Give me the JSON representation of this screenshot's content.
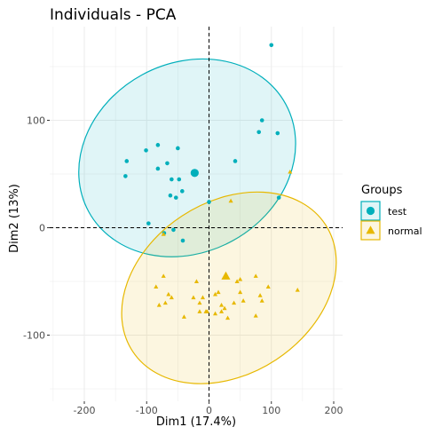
{
  "chart_data": {
    "type": "scatter",
    "title": "Individuals - PCA",
    "xlabel": "Dim1 (17.4%)",
    "ylabel": "Dim2 (13%)",
    "xlim": [
      -240,
      205
    ],
    "ylim": [
      -155,
      175
    ],
    "xticks": [
      -200,
      -100,
      0,
      100,
      200
    ],
    "yticks": [
      -100,
      0,
      100
    ],
    "grid": true,
    "reference_lines": {
      "x": 0,
      "y": 0,
      "style": "dashed"
    },
    "legend": {
      "title": "Groups",
      "position": "right"
    },
    "series": [
      {
        "name": "test",
        "color": "#00AFBB",
        "marker": "circle",
        "points": [
          [
            100,
            170
          ],
          [
            -132,
            62
          ],
          [
            -82,
            77
          ],
          [
            -101,
            72
          ],
          [
            -134,
            48
          ],
          [
            -82,
            55
          ],
          [
            -67,
            60
          ],
          [
            -50,
            74
          ],
          [
            -48,
            45
          ],
          [
            -60,
            45
          ],
          [
            -53,
            28
          ],
          [
            -43,
            34
          ],
          [
            -62,
            30
          ],
          [
            -97,
            4
          ],
          [
            -72,
            -5
          ],
          [
            -57,
            -2
          ],
          [
            -42,
            -12
          ],
          [
            42,
            62
          ],
          [
            85,
            100
          ],
          [
            110,
            88
          ],
          [
            80,
            89
          ],
          [
            112,
            28
          ],
          [
            0,
            24
          ]
        ],
        "centroid": [
          -23,
          51
        ],
        "ellipse": {
          "center": [
            -35,
            65
          ],
          "rx": 180,
          "ry": 88,
          "rotation_deg": -28.6
        }
      },
      {
        "name": "normal",
        "color": "#E7B800",
        "marker": "triangle",
        "points": [
          [
            130,
            52
          ],
          [
            35,
            25
          ],
          [
            -73,
            -6
          ],
          [
            -20,
            -50
          ],
          [
            -73,
            -45
          ],
          [
            -85,
            -55
          ],
          [
            -60,
            -65
          ],
          [
            -80,
            -72
          ],
          [
            -40,
            -83
          ],
          [
            -25,
            -65
          ],
          [
            -15,
            -70
          ],
          [
            -15,
            -78
          ],
          [
            -5,
            -78
          ],
          [
            -3,
            -78
          ],
          [
            10,
            -62
          ],
          [
            20,
            -72
          ],
          [
            25,
            -75
          ],
          [
            40,
            -70
          ],
          [
            45,
            -50
          ],
          [
            50,
            -60
          ],
          [
            50,
            -48
          ],
          [
            75,
            -45
          ],
          [
            85,
            -68
          ],
          [
            82,
            -63
          ],
          [
            95,
            -55
          ],
          [
            75,
            -82
          ],
          [
            142,
            -58
          ],
          [
            -10,
            -65
          ],
          [
            -65,
            -62
          ],
          [
            15,
            -60
          ],
          [
            10,
            -80
          ],
          [
            30,
            -84
          ],
          [
            20,
            -78
          ],
          [
            55,
            -68
          ],
          [
            -70,
            -70
          ]
        ],
        "centroid": [
          27,
          -45
        ],
        "ellipse": {
          "center": [
            32,
            -56
          ],
          "rx": 185,
          "ry": 80,
          "rotation_deg": -33.4
        }
      }
    ]
  }
}
